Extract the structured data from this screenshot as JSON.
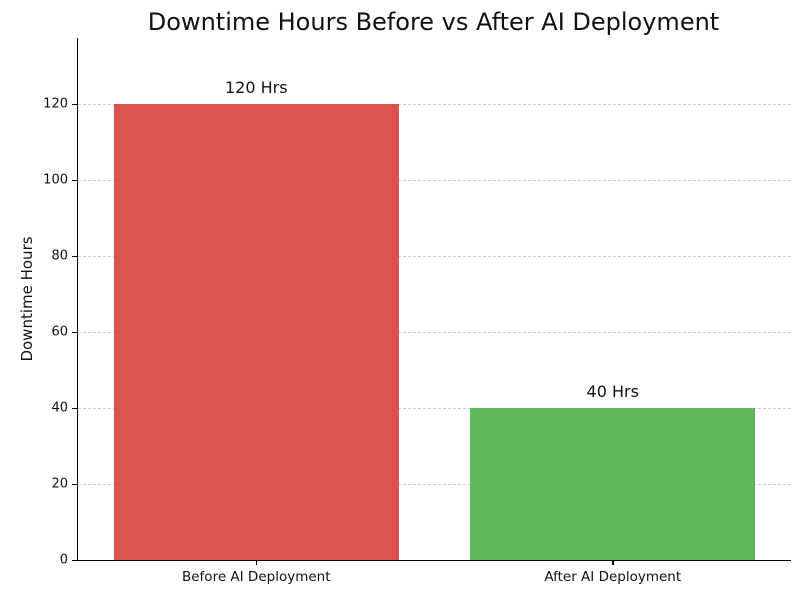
{
  "chart_data": {
    "type": "bar",
    "title": "Downtime Hours Before vs After AI Deployment",
    "categories": [
      "Before AI Deployment",
      "After AI Deployment"
    ],
    "values": [
      120,
      40
    ],
    "bar_labels": [
      "120 Hrs",
      "40 Hrs"
    ],
    "bar_colors": [
      "#d9534f",
      "#5cb85c"
    ],
    "xlabel": "",
    "ylabel": "Downtime Hours",
    "yticks": [
      0,
      20,
      40,
      60,
      80,
      100,
      120
    ],
    "ylim": [
      0,
      137.4
    ],
    "bar_width_fraction": 0.8,
    "grid": {
      "axis": "y",
      "style": "dashed",
      "color": "#cccccc"
    },
    "legend": "none",
    "spines": [
      "left",
      "bottom"
    ]
  }
}
